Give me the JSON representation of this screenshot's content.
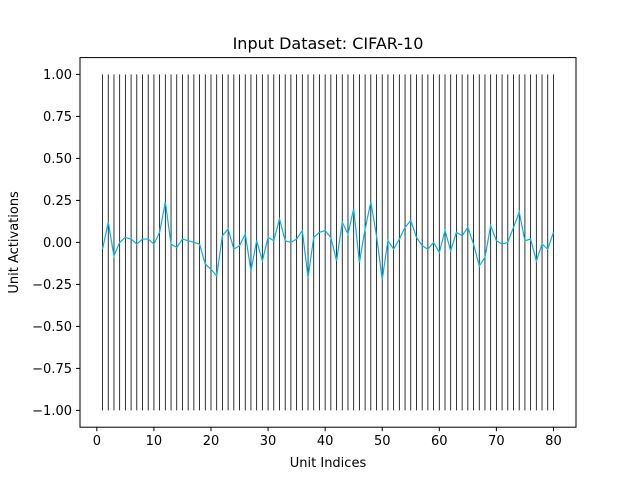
{
  "chart_data": {
    "type": "line",
    "title": "Input Dataset: CIFAR-10",
    "xlabel": "Unit Indices",
    "ylabel": "Unit Activations",
    "xlim": [
      -2.95,
      83.95
    ],
    "ylim": [
      -1.1,
      1.1
    ],
    "xticks": [
      0,
      10,
      20,
      30,
      40,
      50,
      60,
      70,
      80
    ],
    "xtick_labels": [
      "0",
      "10",
      "20",
      "30",
      "40",
      "50",
      "60",
      "70",
      "80"
    ],
    "yticks": [
      1.0,
      0.75,
      0.5,
      0.25,
      0.0,
      -0.25,
      -0.5,
      -0.75,
      -1.0
    ],
    "ytick_labels": [
      "1.00",
      "0.75",
      "0.50",
      "0.25",
      "0.00",
      "−0.25",
      "−0.50",
      "−0.75",
      "−1.00"
    ],
    "vlines": {
      "x_start": 1,
      "x_end": 80,
      "ymin": -1.0,
      "ymax": 1.0,
      "color": "#000000"
    },
    "series": [
      {
        "color": "#00b4e6",
        "x": [
          1,
          2,
          3,
          4,
          5,
          6,
          7,
          8,
          9,
          10,
          11,
          12,
          13,
          14,
          15,
          16,
          17,
          18,
          19,
          20,
          21,
          22,
          23,
          24,
          25,
          26,
          27,
          28,
          29,
          30,
          31,
          32,
          33,
          34,
          35,
          36,
          37,
          38,
          39,
          40,
          41,
          42,
          43,
          44,
          45,
          46,
          47,
          48,
          49,
          50,
          51,
          52,
          53,
          54,
          55,
          56,
          57,
          58,
          59,
          60,
          61,
          62,
          63,
          64,
          65,
          66,
          67,
          68,
          69,
          70,
          71,
          72,
          73,
          74,
          75,
          76,
          77,
          78,
          79,
          80
        ],
        "y": [
          -0.04,
          0.12,
          -0.08,
          0.0,
          0.03,
          0.02,
          -0.01,
          0.02,
          0.02,
          -0.01,
          0.06,
          0.24,
          -0.01,
          -0.03,
          0.02,
          0.01,
          0.0,
          -0.01,
          -0.13,
          -0.16,
          -0.2,
          0.04,
          0.08,
          -0.04,
          -0.02,
          0.05,
          -0.17,
          0.01,
          -0.11,
          0.03,
          0.01,
          0.14,
          0.01,
          0.0,
          0.02,
          0.07,
          -0.21,
          0.03,
          0.06,
          0.07,
          0.03,
          -0.11,
          0.12,
          0.05,
          0.2,
          -0.12,
          0.08,
          0.24,
          0.04,
          -0.22,
          0.01,
          -0.04,
          0.02,
          0.09,
          0.13,
          0.03,
          -0.02,
          -0.04,
          0.0,
          -0.06,
          0.07,
          -0.05,
          0.06,
          0.04,
          0.09,
          -0.01,
          -0.14,
          -0.09,
          0.1,
          0.01,
          -0.01,
          0.0,
          0.09,
          0.18,
          0.01,
          0.02,
          -0.11,
          -0.01,
          -0.04,
          0.06
        ]
      }
    ]
  }
}
